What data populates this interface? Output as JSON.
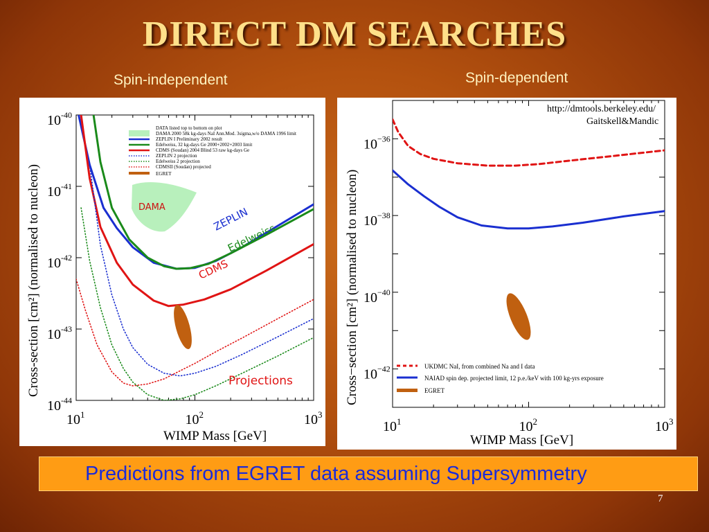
{
  "slide": {
    "title": "DIRECT DM SEARCHES",
    "subtitle_left": "Spin-independent",
    "subtitle_right": "Spin-dependent",
    "banner": "Predictions from EGRET data assuming Supersymmetry",
    "page_number": "7"
  },
  "chart_data": [
    {
      "type": "line",
      "title": "",
      "xlabel": "WIMP Mass [GeV]",
      "ylabel": "Cross-section [cm²] (normalised to nucleon)",
      "xscale": "log",
      "yscale": "log",
      "xlim": [
        10,
        1000
      ],
      "ylim": [
        1e-44,
        1e-40
      ],
      "xtick_labels": [
        "10",
        "10",
        "10"
      ],
      "xtick_exponents": [
        "1",
        "2",
        "3"
      ],
      "ytick_labels": [
        "10",
        "10",
        "10",
        "10",
        "10"
      ],
      "ytick_exponents": [
        "-40",
        "-41",
        "-42",
        "-43",
        "-44"
      ],
      "legend_placement": "top-right",
      "legend": [
        "DATA listed top to bottom on plot",
        "DAMA 2000 58k kg-days NaI Ann.Mod. 3sigma,w/o DAMA 1996 limit",
        "ZEPLIN I Preliminary 2002 result",
        "Edelweiss, 32 kg-days Ge 2000+2002+2003 limit",
        "CDMS (Soudan) 2004 Blind 53 raw kg-days Ge",
        "ZEPLIN 2 projection",
        "Edelweiss 2 projection",
        "CDMSII (Soudan) projected",
        "EGRET"
      ],
      "annotations": {
        "dama": "DAMA",
        "zeplin": "ZEPLIN",
        "edelweiss": "Edelweiss",
        "cdms": "CDMS",
        "projections": "Projections"
      },
      "colors": {
        "dama": "#b8f0bc",
        "zeplin": "#1a2fd0",
        "edelweiss": "#1a8a1a",
        "cdms": "#e01414",
        "egret": "#c06010"
      },
      "series": [
        {
          "name": "ZEPLIN I Preliminary 2002 result",
          "style": "solid",
          "color": "#1a2fd0",
          "x": [
            10.5,
            13,
            17,
            22,
            30,
            45,
            70,
            100,
            150,
            250,
            500,
            1000
          ],
          "y": [
            1e-40,
            2e-41,
            5e-42,
            2.6e-42,
            1.4e-42,
            8.5e-43,
            7e-43,
            7.2e-43,
            9e-43,
            1.4e-42,
            2.8e-42,
            5.6e-42
          ]
        },
        {
          "name": "Edelweiss, 32 kg-days Ge 2000+2002+2003 limit",
          "style": "solid",
          "color": "#1a8a1a",
          "x": [
            14,
            16,
            20,
            28,
            40,
            55,
            70,
            90,
            130,
            200,
            400,
            1000
          ],
          "y": [
            1e-40,
            2.2e-41,
            5e-42,
            1.8e-42,
            1e-42,
            7.6e-43,
            7e-43,
            7.1e-43,
            8.2e-43,
            1.15e-42,
            2.1e-42,
            4.8e-42
          ]
        },
        {
          "name": "CDMS (Soudan) 2004 Blind 53 raw kg-days Ge",
          "style": "solid",
          "color": "#e01414",
          "x": [
            11,
            13,
            16,
            22,
            30,
            45,
            60,
            80,
            120,
            200,
            400,
            1000
          ],
          "y": [
            1e-40,
            1.3e-41,
            2.7e-42,
            8.5e-43,
            4.2e-43,
            2.5e-43,
            2.1e-43,
            2.2e-43,
            2.6e-43,
            3.6e-43,
            6.6e-43,
            1.55e-42
          ]
        },
        {
          "name": "ZEPLIN 2 projection",
          "style": "dotted",
          "color": "#1a2fd0",
          "x": [
            13,
            16,
            20,
            25,
            30,
            40,
            55,
            75,
            100,
            150,
            250,
            500,
            1000
          ],
          "y": [
            2e-41,
            1.5e-42,
            3e-43,
            1e-43,
            5.5e-44,
            3.2e-44,
            2.4e-44,
            2.2e-44,
            2.4e-44,
            3e-44,
            4.4e-44,
            7.8e-44,
            1.4e-43
          ]
        },
        {
          "name": "Edelweiss 2 projection",
          "style": "dotted",
          "color": "#1a8a1a",
          "x": [
            11,
            13,
            16,
            20,
            25,
            30,
            40,
            55,
            75,
            100,
            150,
            250,
            500,
            1000
          ],
          "y": [
            5e-42,
            9e-43,
            2e-43,
            6e-44,
            2.8e-44,
            1.8e-44,
            1.2e-44,
            1e-44,
            1.05e-44,
            1.2e-44,
            1.6e-44,
            2.4e-44,
            4.2e-44,
            7.6e-44
          ]
        },
        {
          "name": "CDMSII (Soudan) projected",
          "style": "dotted",
          "color": "#e01414",
          "x": [
            10,
            12,
            15,
            20,
            25,
            30,
            40,
            55,
            75,
            100,
            150,
            250,
            500,
            1000
          ],
          "y": [
            5e-43,
            1.8e-43,
            6e-44,
            2.5e-44,
            1.75e-44,
            1.6e-44,
            1.7e-44,
            2e-44,
            2.6e-44,
            3.3e-44,
            4.8e-44,
            7.5e-44,
            1.4e-43,
            2.6e-43
          ]
        }
      ]
    },
    {
      "type": "line",
      "title": "",
      "xlabel": "WIMP Mass [GeV]",
      "ylabel": "Cross−section [cm²] (normalised to nucleon)",
      "xscale": "log",
      "yscale": "log",
      "xlim": [
        10,
        1000
      ],
      "ylim": [
        1e-43,
        1e-35
      ],
      "xtick_labels": [
        "10",
        "10",
        "10"
      ],
      "xtick_exponents": [
        "1",
        "2",
        "3"
      ],
      "ytick_labels": [
        "10",
        "10",
        "10",
        "10"
      ],
      "ytick_exponents": [
        "−36",
        "−38",
        "−40",
        "−42"
      ],
      "credit": [
        "http://dmtools.berkeley.edu/",
        "Gaitskell&Mandic"
      ],
      "legend_placement": "bottom-right",
      "legend": [
        "UKDMC NaI, from combined Na and I data",
        "NAIAD spin dep. projected limit, 12 p.e./keV with 100 kg-yrs exposure",
        "EGRET"
      ],
      "colors": {
        "ukdmc": "#e01414",
        "naiad": "#1a2fd0",
        "egret": "#c06010"
      },
      "series": [
        {
          "name": "UKDMC NaI, from combined Na and I data",
          "style": "dashed",
          "color": "#e01414",
          "x": [
            10,
            11,
            13,
            16,
            20,
            30,
            50,
            80,
            120,
            200,
            400,
            1000
          ],
          "y": [
            3.2e-36,
            1.5e-36,
            6.5e-37,
            4e-37,
            3e-37,
            2.3e-37,
            2e-37,
            2e-37,
            2.2e-37,
            2.7e-37,
            3.5e-37,
            5e-37
          ]
        },
        {
          "name": "NAIAD spin dep. projected limit, 12 p.e./keV with 100 kg-yrs exposure",
          "style": "solid",
          "color": "#1a2fd0",
          "x": [
            10,
            13,
            17,
            22,
            30,
            45,
            70,
            100,
            150,
            250,
            500,
            1000
          ],
          "y": [
            1.5e-37,
            6.5e-38,
            3.2e-38,
            1.7e-38,
            9e-39,
            5.5e-39,
            4.6e-39,
            4.6e-39,
            5.2e-39,
            6.5e-39,
            9.5e-39,
            1.3e-38
          ]
        }
      ]
    }
  ]
}
